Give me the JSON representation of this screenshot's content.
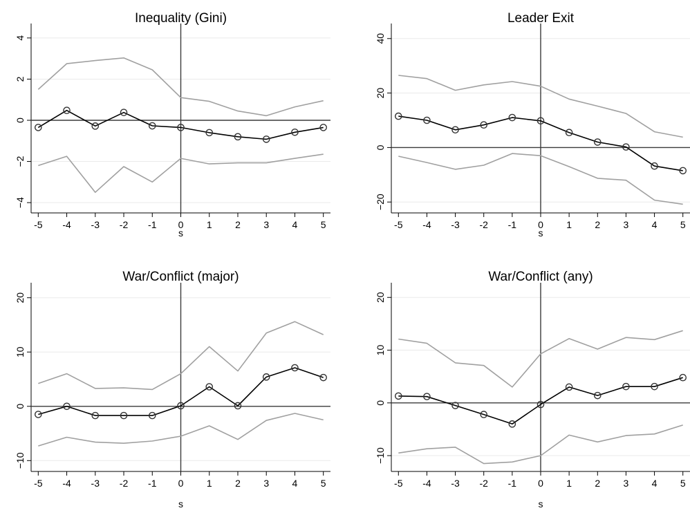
{
  "chart_data": [
    {
      "type": "line",
      "title": "Inequality (Gini)",
      "xlabel": "s",
      "ylabel": "",
      "x": [
        -5,
        -4,
        -3,
        -2,
        -1,
        0,
        1,
        2,
        3,
        4,
        5
      ],
      "xticks": [
        "-5",
        "-4",
        "-3",
        "-2",
        "-1",
        "0",
        "1",
        "2",
        "3",
        "4",
        "5"
      ],
      "xlim": [
        -5.25,
        5.25
      ],
      "ylim": [
        -4.5,
        4.5
      ],
      "yticks": [
        -4,
        -2,
        0,
        2,
        4
      ],
      "yticklabels": [
        "−4",
        "−2",
        "0",
        "2",
        "4"
      ],
      "grid": true,
      "series": [
        {
          "role": "estimate",
          "color": "#000000",
          "markers": "hollow-circle",
          "values": [
            -0.35,
            0.48,
            -0.28,
            0.38,
            -0.27,
            -0.35,
            -0.6,
            -0.8,
            -0.92,
            -0.58,
            -0.35
          ]
        },
        {
          "role": "upper",
          "color": "#a0a0a0",
          "values": [
            1.5,
            2.75,
            2.9,
            3.03,
            2.45,
            1.1,
            0.92,
            0.45,
            0.22,
            0.65,
            0.95
          ]
        },
        {
          "role": "lower",
          "color": "#a0a0a0",
          "values": [
            -2.2,
            -1.75,
            -3.5,
            -2.25,
            -3.0,
            -1.85,
            -2.12,
            -2.07,
            -2.07,
            -1.85,
            -1.65
          ]
        }
      ]
    },
    {
      "type": "line",
      "title": "Leader Exit",
      "xlabel": "s",
      "ylabel": "",
      "x": [
        -5,
        -4,
        -3,
        -2,
        -1,
        0,
        1,
        2,
        3,
        4,
        5
      ],
      "xticks": [
        "-5",
        "-4",
        "-3",
        "-2",
        "-1",
        "0",
        "1",
        "2",
        "3",
        "4",
        "5"
      ],
      "xlim": [
        -5.25,
        5.25
      ],
      "ylim": [
        -24,
        44
      ],
      "yticks": [
        -20,
        0,
        20,
        40
      ],
      "yticklabels": [
        "−20",
        "0",
        "20",
        "40"
      ],
      "grid": true,
      "series": [
        {
          "role": "estimate",
          "color": "#000000",
          "markers": "hollow-circle",
          "values": [
            11.5,
            10.0,
            6.5,
            8.3,
            11.0,
            9.8,
            5.5,
            2.0,
            0.2,
            -6.8,
            -8.5
          ]
        },
        {
          "role": "upper",
          "color": "#a0a0a0",
          "values": [
            26.5,
            25.3,
            21.0,
            23.0,
            24.2,
            22.5,
            17.8,
            15.2,
            12.5,
            5.8,
            3.8
          ]
        },
        {
          "role": "lower",
          "color": "#a0a0a0",
          "values": [
            -3.2,
            -5.5,
            -8.0,
            -6.5,
            -2.2,
            -3.0,
            -7.0,
            -11.3,
            -12.0,
            -19.3,
            -20.8
          ]
        }
      ]
    },
    {
      "type": "line",
      "title": "War/Conflict (major)",
      "xlabel": "s",
      "ylabel": "",
      "x": [
        -5,
        -4,
        -3,
        -2,
        -1,
        0,
        1,
        2,
        3,
        4,
        5
      ],
      "xticks": [
        "-5",
        "-4",
        "-3",
        "-2",
        "-1",
        "0",
        "1",
        "2",
        "3",
        "4",
        "5"
      ],
      "xlim": [
        -5.25,
        5.25
      ],
      "ylim": [
        -12,
        22
      ],
      "yticks": [
        -10,
        0,
        10,
        20
      ],
      "yticklabels": [
        "−10",
        "0",
        "10",
        "20"
      ],
      "grid": true,
      "series": [
        {
          "role": "estimate",
          "color": "#000000",
          "markers": "hollow-circle",
          "values": [
            -1.5,
            0.0,
            -1.7,
            -1.7,
            -1.7,
            0.1,
            3.6,
            0.1,
            5.4,
            7.1,
            5.3
          ]
        },
        {
          "role": "upper",
          "color": "#a0a0a0",
          "values": [
            4.2,
            6.0,
            3.3,
            3.4,
            3.1,
            6.0,
            11.0,
            6.5,
            13.5,
            15.6,
            13.2
          ]
        },
        {
          "role": "lower",
          "color": "#a0a0a0",
          "values": [
            -7.3,
            -5.7,
            -6.6,
            -6.8,
            -6.4,
            -5.5,
            -3.6,
            -6.1,
            -2.6,
            -1.3,
            -2.5
          ]
        }
      ]
    },
    {
      "type": "line",
      "title": "War/Conflict (any)",
      "xlabel": "s",
      "ylabel": "",
      "x": [
        -5,
        -4,
        -3,
        -2,
        -1,
        0,
        1,
        2,
        3,
        4,
        5
      ],
      "xticks": [
        "-5",
        "-4",
        "-3",
        "-2",
        "-1",
        "0",
        "1",
        "2",
        "3",
        "4",
        "5"
      ],
      "xlim": [
        -5.25,
        5.25
      ],
      "ylim": [
        -13,
        22
      ],
      "yticks": [
        -10,
        0,
        10,
        20
      ],
      "yticklabels": [
        "−10",
        "0",
        "10",
        "20"
      ],
      "grid": true,
      "series": [
        {
          "role": "estimate",
          "color": "#000000",
          "markers": "hollow-circle",
          "values": [
            1.3,
            1.2,
            -0.5,
            -2.2,
            -4.0,
            -0.3,
            3.0,
            1.4,
            3.1,
            3.1,
            4.8
          ]
        },
        {
          "role": "upper",
          "color": "#a0a0a0",
          "values": [
            12.1,
            11.3,
            7.6,
            7.1,
            3.0,
            9.3,
            12.2,
            10.2,
            12.4,
            12.0,
            13.7
          ]
        },
        {
          "role": "lower",
          "color": "#a0a0a0",
          "values": [
            -9.5,
            -8.7,
            -8.4,
            -11.5,
            -11.2,
            -10.0,
            -6.1,
            -7.4,
            -6.2,
            -5.9,
            -4.2
          ]
        }
      ]
    }
  ]
}
